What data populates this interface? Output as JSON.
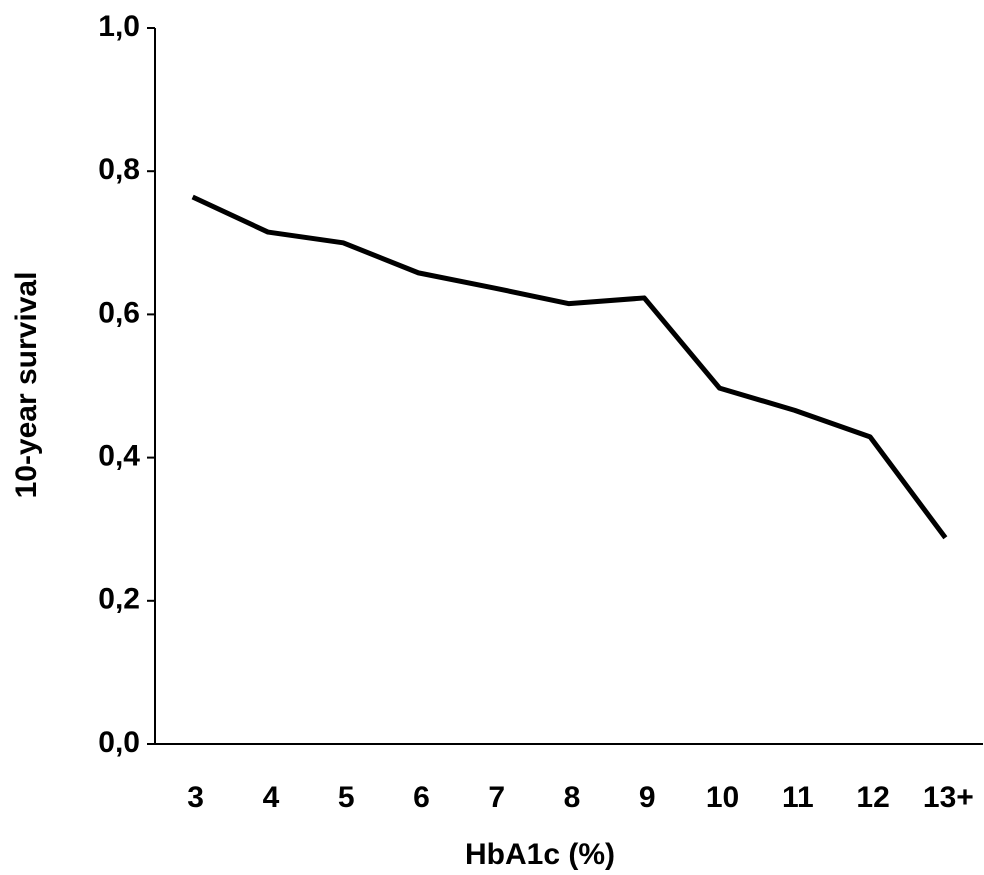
{
  "chart_data": {
    "type": "line",
    "x_label": "HbA1c (%)",
    "y_label": "10-year survival",
    "categories": [
      "3",
      "4",
      "5",
      "6",
      "7",
      "8",
      "9",
      "10",
      "11",
      "12",
      "13+"
    ],
    "series": [
      {
        "name": "10-year survival",
        "color": "#000000",
        "values": [
          0.764,
          0.715,
          0.7,
          0.658,
          0.637,
          0.615,
          0.623,
          0.497,
          0.466,
          0.429,
          0.288
        ]
      }
    ],
    "ylim": [
      0,
      1
    ],
    "yticks": [
      {
        "value": 0,
        "label": "0,0"
      },
      {
        "value": 0.2,
        "label": "0,2"
      },
      {
        "value": 0.4,
        "label": "0,4"
      },
      {
        "value": 0.6,
        "label": "0,6"
      },
      {
        "value": 0.8,
        "label": "0,8"
      },
      {
        "value": 1,
        "label": "1,0"
      }
    ],
    "grid": false
  }
}
